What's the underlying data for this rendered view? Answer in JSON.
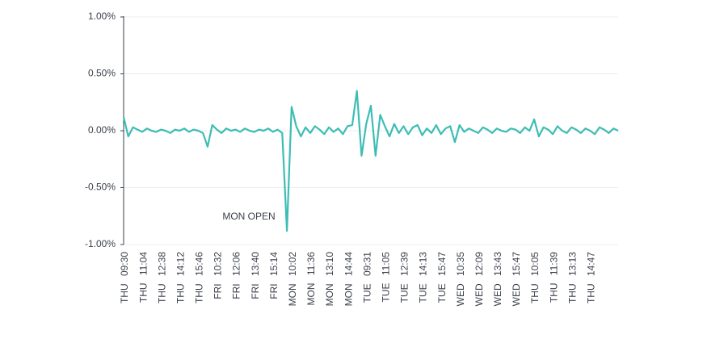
{
  "chart_data": {
    "type": "line",
    "annotation": "MON OPEN",
    "categories": [
      "THU 09:30",
      null,
      null,
      null,
      "THU 11:04",
      null,
      null,
      null,
      "THU 12:38",
      null,
      null,
      null,
      "THU 14:12",
      null,
      null,
      null,
      "THU 15:46",
      null,
      null,
      null,
      "FRI 10:32",
      null,
      null,
      null,
      "FRI 12:06",
      null,
      null,
      null,
      "FRI 13:40",
      null,
      null,
      null,
      "FRI 15:14",
      null,
      null,
      null,
      "MON 10:02",
      null,
      null,
      null,
      "MON 11:36",
      null,
      null,
      null,
      "MON 13:10",
      null,
      null,
      null,
      "MON 14:44",
      null,
      null,
      null,
      "TUE 09:31",
      null,
      null,
      null,
      "TUE 11:05",
      null,
      null,
      null,
      "TUE 12:39",
      null,
      null,
      null,
      "TUE 14:13",
      null,
      null,
      null,
      "TUE 15:47",
      null,
      null,
      null,
      "WED 10:35",
      null,
      null,
      null,
      "WED 12:09",
      null,
      null,
      null,
      "WED 13:43",
      null,
      null,
      null,
      "WED 15:47",
      null,
      null,
      null,
      "THU 10:05",
      null,
      null,
      null,
      "THU 11:39",
      null,
      null,
      null,
      "THU 13:13",
      null,
      null,
      null,
      "THU 14:47",
      null,
      null,
      null,
      null,
      null,
      null
    ],
    "series": [
      {
        "color": "#3dbdb5",
        "values": [
          0.12,
          -0.05,
          0.03,
          0.01,
          -0.01,
          0.02,
          0.0,
          -0.01,
          0.01,
          0.0,
          -0.02,
          0.01,
          0.0,
          0.02,
          -0.01,
          0.01,
          0.0,
          -0.02,
          -0.14,
          0.05,
          0.01,
          -0.02,
          0.02,
          0.0,
          0.01,
          -0.01,
          0.02,
          0.0,
          -0.01,
          0.01,
          0.0,
          0.02,
          -0.01,
          0.01,
          -0.02,
          -0.88,
          0.21,
          0.04,
          -0.05,
          0.03,
          -0.02,
          0.04,
          0.01,
          -0.03,
          0.03,
          -0.01,
          0.02,
          -0.03,
          0.04,
          0.05,
          0.35,
          -0.22,
          0.06,
          0.22,
          -0.22,
          0.14,
          0.04,
          -0.05,
          0.06,
          -0.02,
          0.04,
          -0.03,
          0.03,
          0.05,
          -0.04,
          0.02,
          -0.02,
          0.05,
          -0.03,
          0.02,
          0.04,
          -0.1,
          0.05,
          -0.01,
          0.02,
          0.0,
          -0.02,
          0.03,
          0.01,
          -0.02,
          0.02,
          0.0,
          -0.01,
          0.02,
          0.01,
          -0.02,
          0.03,
          0.0,
          0.1,
          -0.05,
          0.03,
          0.01,
          -0.03,
          0.04,
          0.0,
          -0.02,
          0.03,
          0.01,
          -0.02,
          0.02,
          0.0,
          -0.03,
          0.03,
          0.01,
          -0.02,
          0.02,
          0.0
        ]
      }
    ],
    "ylim": [
      -1,
      1
    ],
    "yticks": [
      {
        "value": -1,
        "label": "-1.00%"
      },
      {
        "value": -0.5,
        "label": "-0.50%"
      },
      {
        "value": 0,
        "label": "0.00%"
      },
      {
        "value": 0.5,
        "label": "0.50%"
      },
      {
        "value": 1,
        "label": "1.00%"
      }
    ],
    "grid": true
  }
}
